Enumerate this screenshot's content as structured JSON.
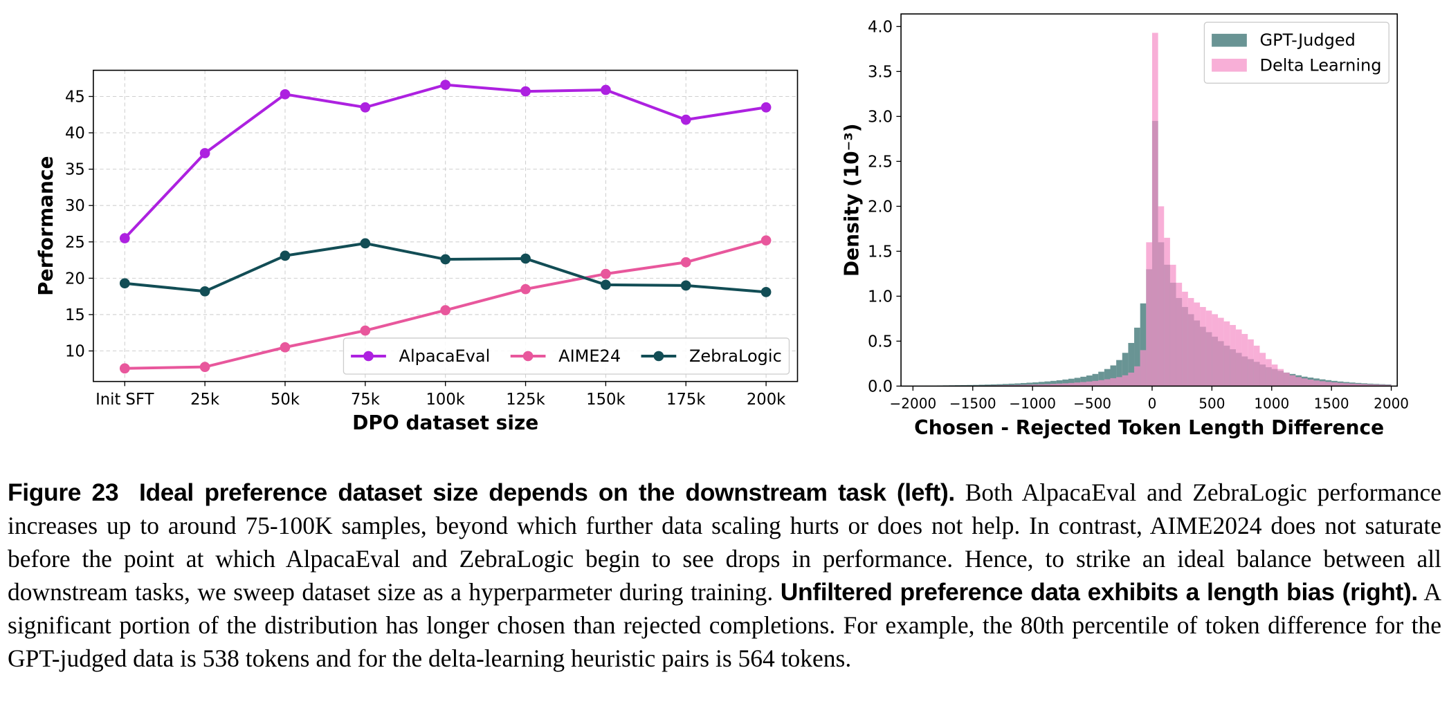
{
  "chart_data": [
    {
      "type": "line",
      "xlabel": "DPO dataset size",
      "ylabel": "Performance",
      "categories": [
        "Init SFT",
        "25k",
        "50k",
        "75k",
        "100k",
        "125k",
        "150k",
        "175k",
        "200k"
      ],
      "series": [
        {
          "name": "AlpacaEval",
          "color": "#ad21e0",
          "values": [
            25.5,
            37.2,
            45.3,
            43.5,
            46.6,
            45.7,
            45.9,
            41.8,
            43.5
          ]
        },
        {
          "name": "AIME24",
          "color": "#e8579c",
          "values": [
            7.6,
            7.8,
            10.5,
            12.8,
            15.6,
            18.5,
            20.6,
            22.2,
            25.2
          ]
        },
        {
          "name": "ZebraLogic",
          "color": "#124d55",
          "values": [
            19.3,
            18.2,
            23.1,
            24.8,
            22.6,
            22.7,
            19.1,
            19.0,
            18.1
          ]
        }
      ],
      "ylim": [
        5.8,
        48.6
      ],
      "yticks": [
        10,
        15,
        20,
        25,
        30,
        35,
        40,
        45
      ],
      "grid": true,
      "legend": "lower right",
      "legend_ncol": 3
    },
    {
      "type": "histogram",
      "xlabel": "Chosen - Rejected Token Length Difference",
      "ylabel": "Density (10⁻³)",
      "bins": [
        -2000,
        -1950,
        -1900,
        -1850,
        -1800,
        -1750,
        -1700,
        -1650,
        -1600,
        -1550,
        -1500,
        -1450,
        -1400,
        -1350,
        -1300,
        -1250,
        -1200,
        -1150,
        -1100,
        -1050,
        -1000,
        -950,
        -900,
        -850,
        -800,
        -750,
        -700,
        -650,
        -600,
        -550,
        -500,
        -450,
        -400,
        -350,
        -300,
        -250,
        -200,
        -150,
        -100,
        -50,
        0,
        50,
        100,
        150,
        200,
        250,
        300,
        350,
        400,
        450,
        500,
        550,
        600,
        650,
        700,
        750,
        800,
        850,
        900,
        950,
        1000,
        1050,
        1100,
        1150,
        1200,
        1250,
        1300,
        1350,
        1400,
        1450,
        1500,
        1550,
        1600,
        1650,
        1700,
        1750,
        1800,
        1850,
        1900,
        1950,
        2000
      ],
      "series": [
        {
          "name": "GPT-Judged",
          "color": "#2f6b6b",
          "values": [
            0.005,
            0.005,
            0.006,
            0.006,
            0.007,
            0.008,
            0.009,
            0.01,
            0.011,
            0.012,
            0.013,
            0.015,
            0.017,
            0.019,
            0.021,
            0.024,
            0.027,
            0.03,
            0.034,
            0.038,
            0.042,
            0.047,
            0.052,
            0.058,
            0.065,
            0.073,
            0.082,
            0.092,
            0.104,
            0.118,
            0.135,
            0.16,
            0.19,
            0.23,
            0.29,
            0.37,
            0.48,
            0.65,
            0.92,
            1.3,
            2.95,
            1.6,
            1.35,
            1.15,
            0.98,
            0.88,
            0.8,
            0.73,
            0.66,
            0.6,
            0.55,
            0.5,
            0.45,
            0.41,
            0.37,
            0.33,
            0.3,
            0.27,
            0.24,
            0.21,
            0.19,
            0.17,
            0.15,
            0.135,
            0.12,
            0.105,
            0.095,
            0.085,
            0.075,
            0.066,
            0.058,
            0.051,
            0.045,
            0.04,
            0.035,
            0.031,
            0.027,
            0.024,
            0.021,
            0.018
          ]
        },
        {
          "name": "Delta Learning",
          "color": "#f590c8",
          "values": [
            0.002,
            0.002,
            0.002,
            0.003,
            0.003,
            0.003,
            0.004,
            0.004,
            0.005,
            0.005,
            0.006,
            0.006,
            0.007,
            0.008,
            0.009,
            0.01,
            0.011,
            0.012,
            0.014,
            0.016,
            0.018,
            0.02,
            0.022,
            0.025,
            0.028,
            0.031,
            0.035,
            0.04,
            0.045,
            0.051,
            0.058,
            0.066,
            0.076,
            0.088,
            0.1,
            0.12,
            0.15,
            0.22,
            0.4,
            1.6,
            3.93,
            2.0,
            1.65,
            1.35,
            1.15,
            1.05,
            0.98,
            0.93,
            0.88,
            0.84,
            0.8,
            0.76,
            0.72,
            0.68,
            0.63,
            0.58,
            0.52,
            0.45,
            0.37,
            0.3,
            0.24,
            0.19,
            0.15,
            0.12,
            0.1,
            0.085,
            0.072,
            0.062,
            0.054,
            0.047,
            0.041,
            0.036,
            0.032,
            0.028,
            0.025,
            0.022,
            0.019,
            0.017,
            0.015,
            0.013
          ]
        }
      ],
      "xlim": [
        -2100,
        2050
      ],
      "xticks": [
        {
          "value": -2000,
          "label": "−2000"
        },
        {
          "value": -1500,
          "label": "−1500"
        },
        {
          "value": -1000,
          "label": "−1000"
        },
        {
          "value": -500,
          "label": "−500"
        },
        0,
        500,
        1000,
        1500,
        2000
      ],
      "ylim": [
        0,
        4.14
      ],
      "yticks": [
        {
          "value": 0,
          "label": "0.0"
        },
        0.5,
        {
          "value": 1,
          "label": "1.0"
        },
        1.5,
        {
          "value": 2,
          "label": "2.0"
        },
        2.5,
        {
          "value": 3,
          "label": "3.0"
        },
        3.5,
        {
          "value": 4,
          "label": "4.0"
        }
      ],
      "grid": false,
      "legend": "upper right",
      "legend_ncol": 1
    }
  ],
  "caption": {
    "label": "Figure 23",
    "heading1": "Ideal preference dataset size depends on the downstream task (left).",
    "text1": "Both AlpacaEval and ZebraLogic performance increases up to around 75-100K samples, beyond which further data scaling hurts or does not help. In contrast, AIME2024 does not saturate before the point at which AlpacaEval and ZebraLogic begin to see drops in performance. Hence, to strike an ideal balance between all downstream tasks, we sweep dataset size as a hyperparmeter during training.",
    "heading2": "Unfiltered preference data exhibits a length bias (right).",
    "text2": "A significant portion of the distribution has longer chosen than rejected completions. For example, the 80th percentile of token difference for the GPT-judged data is 538 tokens and for the delta-learning heuristic pairs is 564 tokens."
  }
}
